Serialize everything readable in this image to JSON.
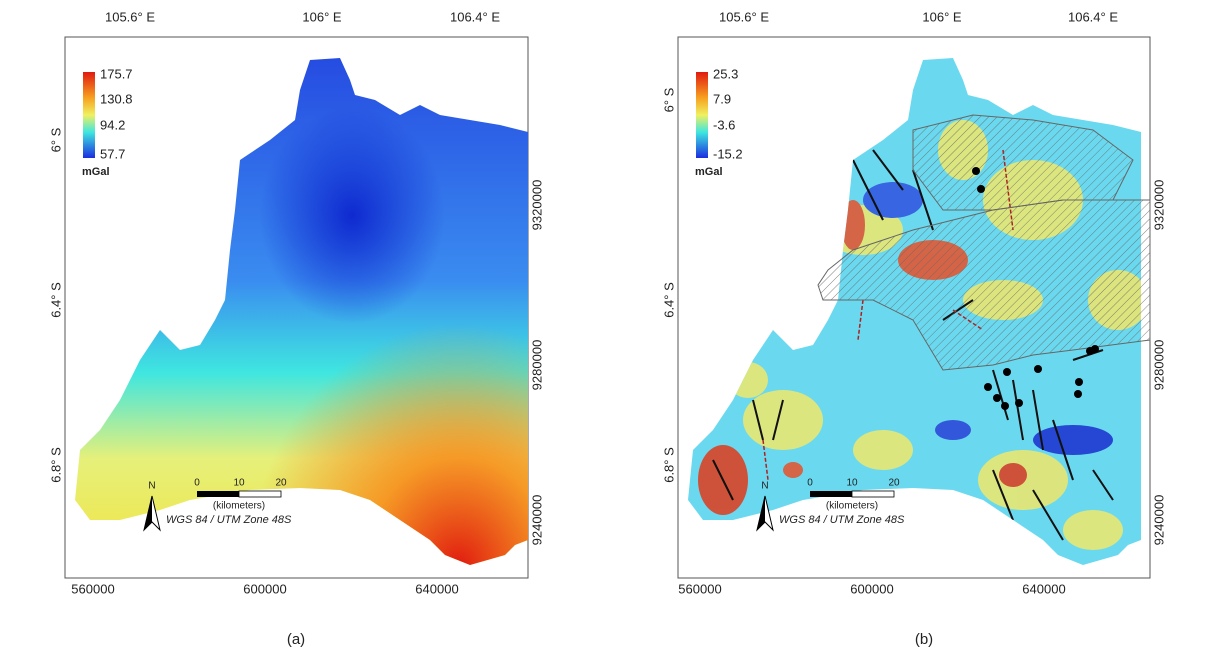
{
  "panels": [
    {
      "label": "(a)",
      "top_ticks": [
        "105.6° E",
        "106° E",
        "106.4° E"
      ],
      "left_ticks": [
        "6° S",
        "6.4° S",
        "6.8° S"
      ],
      "bottom_ticks": [
        "560000",
        "600000",
        "640000"
      ],
      "right_ticks": [
        "9320000",
        "9280000",
        "9240000"
      ],
      "legend": {
        "values": [
          "175.7",
          "130.8",
          "94.2",
          "57.7"
        ],
        "unit": "mGal"
      },
      "scale": {
        "ticks": [
          "0",
          "10",
          "20"
        ],
        "unit": "(kilometers)"
      },
      "north": "N",
      "projection": "WGS 84 / UTM Zone 48S"
    },
    {
      "label": "(b)",
      "top_ticks": [
        "105.6° E",
        "106° E",
        "106.4° E"
      ],
      "left_ticks": [
        "6° S",
        "6.4° S",
        "6.8° S"
      ],
      "bottom_ticks": [
        "560000",
        "600000",
        "640000"
      ],
      "right_ticks": [
        "9320000",
        "9280000",
        "9240000"
      ],
      "legend": {
        "values": [
          "25.3",
          "7.9",
          "-3.6",
          "-15.2"
        ],
        "unit": "mGal"
      },
      "scale": {
        "ticks": [
          "0",
          "10",
          "20"
        ],
        "unit": "(kilometers)"
      },
      "north": "N",
      "projection": "WGS 84 / UTM Zone 48S"
    }
  ]
}
